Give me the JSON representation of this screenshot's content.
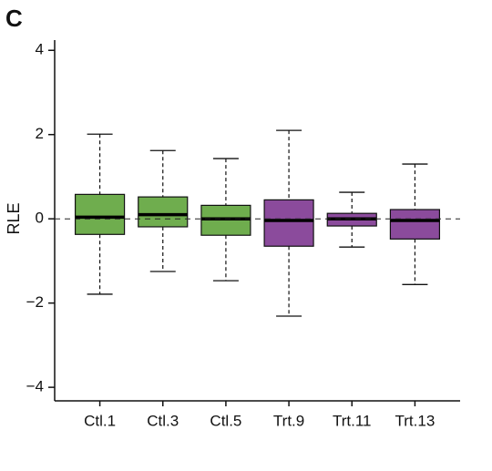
{
  "chart_data": {
    "type": "box",
    "panel_label": "C",
    "ylabel": "RLE",
    "categories": [
      "Ctl.1",
      "Ctl.3",
      "Ctl.5",
      "Trt.9",
      "Trt.11",
      "Trt.13"
    ],
    "whishi": [
      2.01,
      1.62,
      1.43,
      2.1,
      0.63,
      1.3
    ],
    "q3": [
      0.58,
      0.52,
      0.32,
      0.45,
      0.13,
      0.22
    ],
    "median": [
      0.04,
      0.1,
      0,
      -0.04,
      0,
      -0.04
    ],
    "q1": [
      -0.37,
      -0.19,
      -0.39,
      -0.65,
      -0.17,
      -0.48
    ],
    "whislo": [
      -1.79,
      -1.25,
      -1.47,
      -2.31,
      -0.67,
      -1.56
    ],
    "colors": [
      "#6fad4e",
      "#6fad4e",
      "#6fad4e",
      "#8b4b9c",
      "#8b4b9c",
      "#8b4b9c"
    ],
    "reference_line": 0,
    "ylim": [
      -4.3,
      4.2
    ],
    "yticks": [
      {
        "value": -4,
        "label": "−4"
      },
      {
        "value": -2,
        "label": "−2"
      },
      0,
      2,
      4
    ]
  }
}
